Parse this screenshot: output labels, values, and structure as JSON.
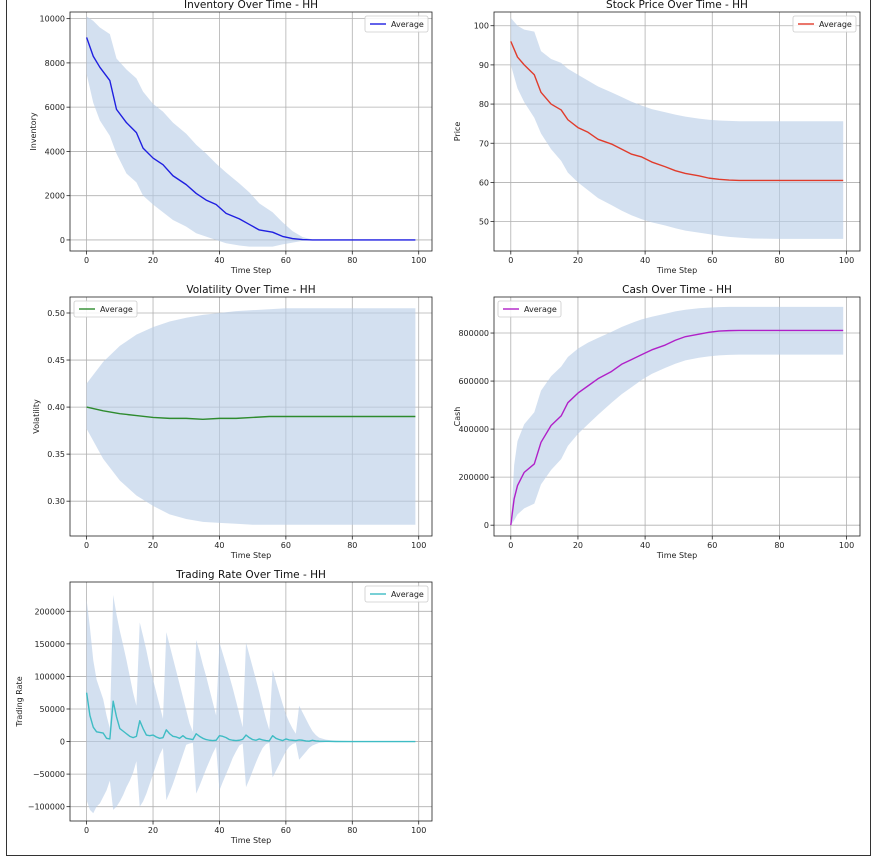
{
  "chart_data": [
    {
      "type": "line",
      "title": "Inventory Over Time - HH",
      "xlabel": "Time Step",
      "ylabel": "Inventory",
      "xlim": [
        -5,
        104
      ],
      "ylim": [
        -500,
        10300
      ],
      "xticks": [
        0,
        20,
        40,
        60,
        80,
        100
      ],
      "yticks": [
        0,
        2000,
        4000,
        6000,
        8000,
        10000
      ],
      "grid": true,
      "legend": "top-right",
      "series": [
        {
          "name": "Average",
          "color": "#1f1fe0",
          "x": [
            0,
            2,
            4,
            7,
            9,
            12,
            15,
            17,
            20,
            23,
            26,
            30,
            33,
            36,
            39,
            42,
            46,
            49,
            52,
            56,
            59,
            62,
            65,
            68,
            72,
            80,
            90,
            99
          ],
          "y": [
            9150,
            8300,
            7800,
            7200,
            5900,
            5300,
            4850,
            4150,
            3700,
            3400,
            2900,
            2500,
            2100,
            1800,
            1600,
            1200,
            950,
            700,
            450,
            350,
            160,
            60,
            15,
            0,
            0,
            0,
            0,
            0
          ],
          "band_lower": [
            7500,
            6200,
            5400,
            4700,
            3900,
            3000,
            2600,
            2000,
            1600,
            1250,
            900,
            600,
            300,
            150,
            0,
            -150,
            -250,
            -300,
            -300,
            -300,
            -200,
            -120,
            -40,
            0,
            0,
            0,
            0,
            0
          ],
          "band_upper": [
            10100,
            9900,
            9600,
            9300,
            8200,
            7700,
            7300,
            6700,
            6150,
            5800,
            5300,
            4800,
            4300,
            3900,
            3450,
            3050,
            2550,
            2150,
            1650,
            1250,
            800,
            400,
            130,
            20,
            0,
            0,
            0,
            0
          ]
        }
      ]
    },
    {
      "type": "line",
      "title": "Stock Price Over Time - HH",
      "xlabel": "Time Step",
      "ylabel": "Price",
      "xlim": [
        -5,
        104
      ],
      "ylim": [
        42.5,
        103.5
      ],
      "xticks": [
        0,
        20,
        40,
        60,
        80,
        100
      ],
      "yticks": [
        50,
        60,
        70,
        80,
        90,
        100
      ],
      "grid": true,
      "legend": "top-right",
      "series": [
        {
          "name": "Average",
          "color": "#e03c2c",
          "x": [
            0,
            2,
            4,
            7,
            9,
            12,
            15,
            17,
            20,
            23,
            26,
            30,
            33,
            36,
            39,
            42,
            46,
            49,
            52,
            56,
            59,
            62,
            65,
            68,
            72,
            80,
            90,
            99
          ],
          "y": [
            96,
            92,
            90,
            87.5,
            83,
            80,
            78.5,
            76,
            74,
            72.8,
            71,
            69.8,
            68.5,
            67.2,
            66.5,
            65.2,
            64,
            63,
            62.3,
            61.7,
            61.1,
            60.8,
            60.6,
            60.5,
            60.5,
            60.5,
            60.5,
            60.5
          ],
          "band_lower": [
            90,
            84,
            80.5,
            76.5,
            72.5,
            68.5,
            65.5,
            62.5,
            60,
            58,
            56,
            54.2,
            52.8,
            51.6,
            50.6,
            49.8,
            49,
            48.3,
            47.7,
            47.2,
            46.8,
            46.4,
            46.1,
            45.9,
            45.7,
            45.6,
            45.6,
            45.6
          ],
          "band_upper": [
            102,
            100,
            99,
            98.5,
            93.5,
            91.5,
            90.5,
            89,
            87.5,
            86,
            84.5,
            83,
            81.8,
            80.6,
            79.6,
            78.7,
            77.9,
            77.3,
            76.8,
            76.3,
            76,
            75.8,
            75.7,
            75.6,
            75.6,
            75.6,
            75.6,
            75.6
          ]
        }
      ]
    },
    {
      "type": "line",
      "title": "Volatility Over Time - HH",
      "xlabel": "Time Step",
      "ylabel": "Volatility",
      "xlim": [
        -5,
        104
      ],
      "ylim": [
        0.263,
        0.517
      ],
      "xticks": [
        0,
        20,
        40,
        60,
        80,
        100
      ],
      "yticks": [
        0.3,
        0.35,
        0.4,
        0.45,
        0.5
      ],
      "ytick_labels": [
        "0.30",
        "0.35",
        "0.40",
        "0.45",
        "0.50"
      ],
      "grid": true,
      "legend": "top-left",
      "series": [
        {
          "name": "Average",
          "color": "#2e8b2e",
          "x": [
            0,
            5,
            10,
            15,
            20,
            25,
            30,
            35,
            40,
            45,
            50,
            55,
            60,
            65,
            70,
            80,
            90,
            99
          ],
          "y": [
            0.4,
            0.396,
            0.393,
            0.391,
            0.389,
            0.388,
            0.388,
            0.387,
            0.388,
            0.388,
            0.389,
            0.39,
            0.39,
            0.39,
            0.39,
            0.39,
            0.39,
            0.39
          ],
          "band_lower": [
            0.377,
            0.345,
            0.322,
            0.306,
            0.295,
            0.286,
            0.281,
            0.278,
            0.277,
            0.276,
            0.275,
            0.275,
            0.275,
            0.275,
            0.275,
            0.275,
            0.275,
            0.275
          ],
          "band_upper": [
            0.425,
            0.448,
            0.465,
            0.477,
            0.485,
            0.491,
            0.495,
            0.498,
            0.5,
            0.502,
            0.503,
            0.504,
            0.505,
            0.505,
            0.505,
            0.505,
            0.505,
            0.505
          ]
        }
      ]
    },
    {
      "type": "line",
      "title": "Cash Over Time - HH",
      "xlabel": "Time Step",
      "ylabel": "Cash",
      "xlim": [
        -5,
        104
      ],
      "ylim": [
        -45000,
        950000
      ],
      "xticks": [
        0,
        20,
        40,
        60,
        80,
        100
      ],
      "yticks": [
        0,
        200000,
        400000,
        600000,
        800000
      ],
      "grid": true,
      "legend": "top-left",
      "series": [
        {
          "name": "Average",
          "color": "#b020c8",
          "x": [
            0,
            1,
            2,
            4,
            7,
            9,
            12,
            15,
            17,
            20,
            23,
            26,
            30,
            33,
            36,
            39,
            42,
            46,
            49,
            52,
            56,
            59,
            62,
            65,
            68,
            72,
            80,
            90,
            99
          ],
          "y": [
            0,
            110000,
            165000,
            220000,
            255000,
            345000,
            415000,
            455000,
            510000,
            550000,
            580000,
            610000,
            640000,
            670000,
            690000,
            710000,
            730000,
            750000,
            770000,
            785000,
            795000,
            803000,
            808000,
            810000,
            811000,
            811000,
            811000,
            811000,
            811000
          ],
          "band_lower": [
            0,
            20000,
            45000,
            70000,
            90000,
            170000,
            230000,
            275000,
            330000,
            380000,
            420000,
            460000,
            510000,
            545000,
            575000,
            605000,
            630000,
            655000,
            672000,
            686000,
            697000,
            703000,
            707000,
            709000,
            710000,
            710000,
            710000,
            710000,
            710000
          ],
          "band_upper": [
            0,
            250000,
            350000,
            420000,
            470000,
            560000,
            620000,
            660000,
            700000,
            735000,
            760000,
            780000,
            805000,
            825000,
            842000,
            857000,
            868000,
            880000,
            890000,
            897000,
            903000,
            906000,
            908000,
            909000,
            909000,
            909000,
            909000,
            909000,
            909000
          ]
        }
      ]
    },
    {
      "type": "line",
      "title": "Trading Rate Over Time - HH",
      "xlabel": "Time Step",
      "ylabel": "Trading Rate",
      "xlim": [
        -5,
        104
      ],
      "ylim": [
        -122000,
        245000
      ],
      "xticks": [
        0,
        20,
        40,
        60,
        80,
        100
      ],
      "yticks": [
        -100000,
        -50000,
        0,
        50000,
        100000,
        150000,
        200000
      ],
      "ytick_labels": [
        "−100000",
        "−50000",
        "0",
        "50000",
        "100000",
        "150000",
        "200000"
      ],
      "grid": true,
      "legend": "top-right",
      "series": [
        {
          "name": "Average",
          "color": "#3fbcc4",
          "x": [
            0,
            1,
            2,
            3,
            4,
            5,
            6,
            7,
            8,
            9,
            10,
            11,
            12,
            13,
            14,
            15,
            16,
            17,
            18,
            19,
            20,
            21,
            22,
            23,
            24,
            25,
            26,
            27,
            28,
            29,
            30,
            31,
            32,
            33,
            34,
            35,
            36,
            37,
            38,
            39,
            40,
            41,
            42,
            43,
            44,
            45,
            46,
            47,
            48,
            49,
            50,
            51,
            52,
            53,
            54,
            55,
            56,
            57,
            58,
            59,
            60,
            61,
            62,
            63,
            64,
            65,
            66,
            67,
            68,
            69,
            70,
            72,
            75,
            80,
            85,
            90,
            95,
            99
          ],
          "y": [
            75000,
            40000,
            22000,
            15000,
            14000,
            13000,
            5000,
            4000,
            62000,
            38000,
            20000,
            16000,
            12000,
            8000,
            6000,
            8000,
            32000,
            20000,
            10000,
            9000,
            10000,
            7000,
            5000,
            6000,
            18000,
            12000,
            8000,
            7000,
            5000,
            9000,
            5000,
            4000,
            3000,
            12000,
            8000,
            5000,
            3000,
            2000,
            1500,
            2000,
            9000,
            8000,
            6000,
            3000,
            2000,
            1500,
            2000,
            3500,
            10000,
            6000,
            3000,
            2000,
            4000,
            2500,
            1500,
            1000,
            9000,
            5000,
            3000,
            1500,
            4000,
            2500,
            2000,
            1500,
            2500,
            2000,
            1000,
            500,
            2000,
            1000,
            500,
            300,
            100,
            0,
            0,
            0,
            0,
            0
          ],
          "band_lower": [
            -90000,
            -105000,
            -110000,
            -100000,
            -95000,
            -85000,
            -75000,
            -60000,
            -105000,
            -100000,
            -92000,
            -82000,
            -70000,
            -60000,
            -48000,
            -30000,
            -100000,
            -92000,
            -80000,
            -65000,
            -50000,
            -35000,
            -20000,
            -10000,
            -90000,
            -78000,
            -65000,
            -50000,
            -35000,
            -20000,
            -5000,
            -3000,
            -2000,
            -80000,
            -68000,
            -55000,
            -42000,
            -30000,
            -18000,
            -8000,
            -75000,
            -62000,
            -50000,
            -38000,
            -25000,
            -15000,
            -6000,
            -3000,
            -70000,
            -58000,
            -45000,
            -32000,
            -20000,
            -10000,
            -4000,
            -2000,
            -55000,
            -45000,
            -35000,
            -25000,
            -15000,
            -8000,
            -4000,
            -2000,
            -28000,
            -22000,
            -16000,
            -10000,
            -6000,
            -4000,
            -2000,
            -1000,
            0,
            0,
            0,
            0,
            0,
            0
          ],
          "band_upper": [
            218000,
            175000,
            125000,
            95000,
            80000,
            65000,
            40000,
            20000,
            225000,
            195000,
            170000,
            148000,
            125000,
            100000,
            75000,
            55000,
            183000,
            162000,
            140000,
            115000,
            95000,
            75000,
            55000,
            35000,
            168000,
            148000,
            128000,
            108000,
            88000,
            68000,
            48000,
            28000,
            15000,
            156000,
            138000,
            118000,
            100000,
            80000,
            60000,
            40000,
            152000,
            135000,
            118000,
            100000,
            82000,
            62000,
            42000,
            22000,
            152000,
            133000,
            114000,
            95000,
            76000,
            55000,
            35000,
            18000,
            110000,
            92000,
            75000,
            58000,
            42000,
            30000,
            20000,
            12000,
            55000,
            45000,
            35000,
            25000,
            16000,
            10000,
            6000,
            3000,
            1000,
            0,
            0,
            0,
            0,
            0
          ]
        }
      ]
    }
  ]
}
